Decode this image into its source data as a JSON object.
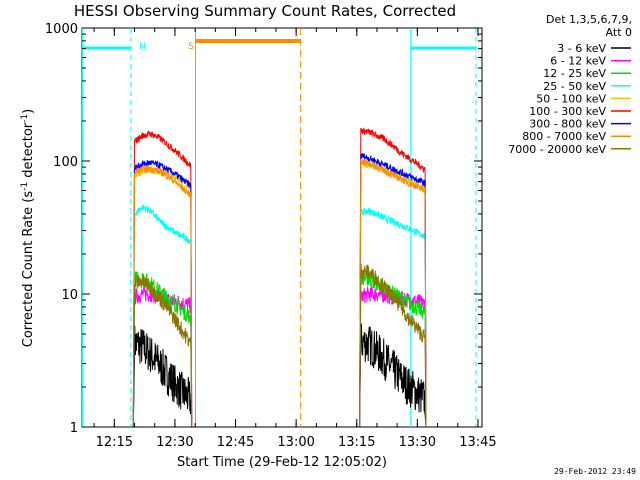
{
  "chart_data": {
    "type": "line",
    "title": "HESSI Observing Summary Count Rates, Corrected",
    "xlabel": "Start Time (29-Feb-12 12:05:02)",
    "ylabel_main": "Corrected Count Rate (s",
    "ylabel_sup1": "-1",
    "ylabel_mid": " detector",
    "ylabel_sup2": "-1",
    "ylabel_end": ")",
    "ylog": true,
    "ylim": [
      1,
      1000
    ],
    "xlim_min": [
      727,
      826
    ],
    "x_ticks": [
      {
        "min": 735,
        "label": "12:15"
      },
      {
        "min": 750,
        "label": "12:30"
      },
      {
        "min": 765,
        "label": "12:45"
      },
      {
        "min": 780,
        "label": "13:00"
      },
      {
        "min": 795,
        "label": "13:15"
      },
      {
        "min": 810,
        "label": "13:30"
      },
      {
        "min": 825,
        "label": "13:45"
      }
    ],
    "y_ticks": [
      {
        "value": 1,
        "label": "1"
      },
      {
        "value": 10,
        "label": "10"
      },
      {
        "value": 100,
        "label": "100"
      },
      {
        "value": 1000,
        "label": "1000"
      }
    ],
    "legend_header": [
      "Det 1,3,5,6,7,9,",
      "Att 0"
    ],
    "legend_placement": "right",
    "series": [
      {
        "name": "3 - 6 keV",
        "color": "#000000",
        "segments": [
          {
            "t": [
              740,
              742,
              744,
              746,
              748,
              750,
              752,
              754
            ],
            "v": [
              4.3,
              4.0,
              3.5,
              3.0,
              2.5,
              2.1,
              1.8,
              1.6
            ]
          },
          {
            "t": [
              796,
              798,
              800,
              802,
              804,
              806,
              808,
              810,
              812
            ],
            "v": [
              4.4,
              4.2,
              3.7,
              3.2,
              2.7,
              2.3,
              2.0,
              1.8,
              1.6
            ]
          }
        ]
      },
      {
        "name": "6 - 12 keV",
        "color": "#ff00ff",
        "segments": [
          {
            "t": [
              740,
              742,
              744,
              746,
              748,
              750,
              752,
              754
            ],
            "v": [
              9.5,
              10,
              10,
              9.5,
              9,
              8.8,
              8.5,
              8.2
            ]
          },
          {
            "t": [
              796,
              798,
              800,
              802,
              804,
              806,
              808,
              810,
              812
            ],
            "v": [
              9.5,
              10,
              10,
              9.8,
              9.5,
              9.2,
              9,
              8.7,
              8.5
            ]
          }
        ]
      },
      {
        "name": "12 - 25 keV",
        "color": "#00dd00",
        "segments": [
          {
            "t": [
              740,
              742,
              744,
              746,
              748,
              750,
              752,
              754
            ],
            "v": [
              13,
              13,
              12,
              10.5,
              9.5,
              8.5,
              7.5,
              6.5
            ]
          },
          {
            "t": [
              796,
              798,
              800,
              802,
              804,
              806,
              808,
              810,
              812
            ],
            "v": [
              13.5,
              13,
              12,
              11,
              10,
              9.3,
              8.5,
              7.8,
              7.2
            ]
          }
        ]
      },
      {
        "name": "25 - 50 keV",
        "color": "#00ffff",
        "segments": [
          {
            "t": [
              740,
              742,
              744,
              746,
              748,
              750,
              752,
              754
            ],
            "v": [
              40,
              45,
              42,
              36,
              32,
              29,
              27,
              25
            ]
          },
          {
            "t": [
              796,
              798,
              800,
              802,
              804,
              806,
              808,
              810,
              812
            ],
            "v": [
              41,
              42,
              40,
              37,
              35,
              33,
              31,
              29,
              27
            ]
          }
        ]
      },
      {
        "name": "50 - 100 keV",
        "color": "#e8c800",
        "segments": [
          {
            "t": [
              740,
              742,
              744,
              746,
              748,
              750,
              752,
              754
            ],
            "v": [
              78,
              83,
              85,
              83,
              80,
              75,
              70,
              63
            ]
          },
          {
            "t": [
              796,
              798,
              800,
              802,
              804,
              806,
              808,
              810,
              812
            ],
            "v": [
              96,
              94,
              90,
              85,
              80,
              75,
              70,
              65,
              60
            ]
          }
        ]
      },
      {
        "name": "100 - 300 keV",
        "color": "#ff0000",
        "segments": [
          {
            "t": [
              740,
              742,
              744,
              746,
              748,
              750,
              752,
              754
            ],
            "v": [
              140,
              155,
              160,
              150,
              135,
              120,
              105,
              92
            ]
          },
          {
            "t": [
              796,
              798,
              800,
              802,
              804,
              806,
              808,
              810,
              812
            ],
            "v": [
              170,
              165,
              155,
              145,
              130,
              115,
              105,
              95,
              86
            ]
          }
        ]
      },
      {
        "name": "300 - 800 keV",
        "color": "#0000ff",
        "segments": [
          {
            "t": [
              740,
              742,
              744,
              746,
              748,
              750,
              752,
              754
            ],
            "v": [
              88,
              95,
              97,
              93,
              87,
              80,
              72,
              65
            ]
          },
          {
            "t": [
              796,
              798,
              800,
              802,
              804,
              806,
              808,
              810,
              812
            ],
            "v": [
              110,
              105,
              99,
              93,
              87,
              82,
              77,
              72,
              68
            ]
          }
        ]
      },
      {
        "name": "800 - 7000 keV",
        "color": "#ff8c00",
        "segments": [
          {
            "t": [
              740,
              742,
              744,
              746,
              748,
              750,
              752,
              754
            ],
            "v": [
              82,
              87,
              88,
              84,
              78,
              70,
              62,
              55
            ]
          },
          {
            "t": [
              796,
              798,
              800,
              802,
              804,
              806,
              808,
              810,
              812
            ],
            "v": [
              100,
              96,
              90,
              84,
              78,
              73,
              68,
              64,
              60
            ]
          }
        ]
      },
      {
        "name": "7000 - 20000 keV",
        "color": "#8b7500",
        "segments": [
          {
            "t": [
              740,
              742,
              744,
              746,
              748,
              750,
              752,
              754
            ],
            "v": [
              12,
              12.5,
              11,
              9.5,
              8,
              6.5,
              5.2,
              4.2
            ]
          },
          {
            "t": [
              796,
              798,
              800,
              802,
              804,
              806,
              808,
              810,
              812
            ],
            "v": [
              15,
              14.5,
              13,
              11,
              9.5,
              8,
              6.5,
              5.5,
              4.6
            ]
          }
        ]
      }
    ],
    "night_intervals_cyan_min": [
      [
        726,
        739.1
      ],
      [
        808.4,
        824.5
      ]
    ],
    "saa_interval_orange_min": [
      755.1,
      781.1
    ],
    "flag_labels": [
      {
        "text": "N",
        "at_min": 742,
        "color": "#00ffff"
      },
      {
        "text": "S",
        "at_min": 754,
        "color": "#ff8c00"
      }
    ],
    "footer_date": "29-Feb-2012 23:49"
  }
}
